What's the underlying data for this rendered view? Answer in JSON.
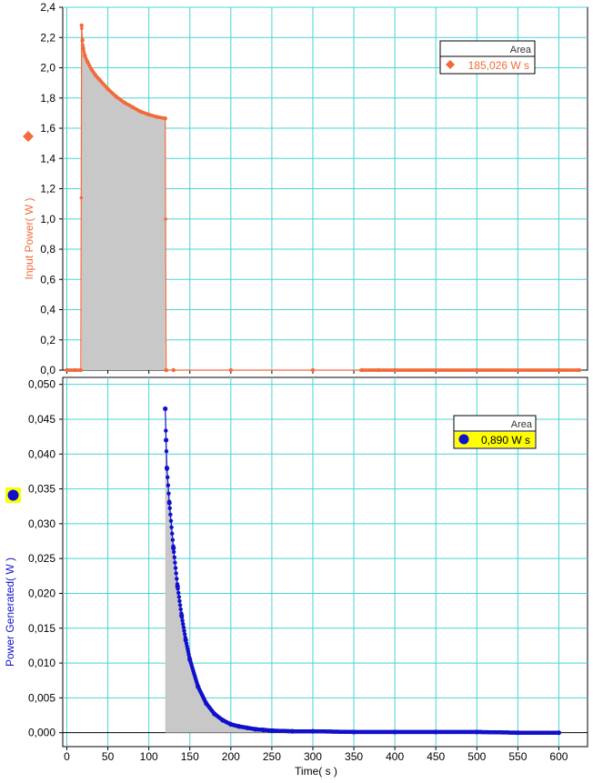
{
  "chart_data": [
    {
      "type": "area",
      "ylabel": "Input Power( W )",
      "xlabel": "",
      "xlim": [
        -5,
        635
      ],
      "ylim": [
        0,
        2.4
      ],
      "yticks": [
        "0,0",
        "0,2",
        "0,4",
        "0,6",
        "0,8",
        "1,0",
        "1,2",
        "1,4",
        "1,6",
        "1,8",
        "2,0",
        "2,2",
        "2,4"
      ],
      "grid": true,
      "color": "#f26b3a",
      "marker": "diamond",
      "shaded_range": [
        18,
        120
      ],
      "legend": {
        "title": "Area",
        "value": "185,026 W s",
        "position": "top-right"
      },
      "series": [
        {
          "x": [
            0,
            10,
            17,
            18,
            19,
            20,
            22,
            25,
            30,
            35,
            40,
            50,
            60,
            70,
            80,
            90,
            100,
            110,
            120,
            121,
            130,
            200,
            300,
            360,
            380,
            400,
            500,
            600,
            625
          ],
          "y": [
            0,
            0,
            0,
            2.28,
            2.18,
            2.13,
            2.08,
            2.04,
            1.99,
            1.95,
            1.92,
            1.86,
            1.81,
            1.77,
            1.74,
            1.71,
            1.69,
            1.675,
            1.665,
            0,
            0,
            0,
            0,
            0,
            0,
            0,
            0,
            0,
            0
          ]
        }
      ]
    },
    {
      "type": "area",
      "ylabel": "Power Generated( W )",
      "xlabel": "Time( s )",
      "xlim": [
        -5,
        635
      ],
      "ylim": [
        -0.002,
        0.051
      ],
      "xticks": [
        "0",
        "50",
        "100",
        "150",
        "200",
        "250",
        "300",
        "350",
        "400",
        "450",
        "500",
        "550",
        "600"
      ],
      "yticks": [
        "0,000",
        "0,005",
        "0,010",
        "0,015",
        "0,020",
        "0,025",
        "0,030",
        "0,035",
        "0,040",
        "0,045",
        "0,050"
      ],
      "grid": true,
      "color": "#1010cc",
      "marker": "circle",
      "shaded_range": [
        120,
        600
      ],
      "legend": {
        "title": "Area",
        "value": "0,890 W s",
        "position": "top-right",
        "highlight": "#ffff00"
      },
      "series": [
        {
          "x": [
            120,
            121,
            122,
            125,
            130,
            135,
            140,
            145,
            150,
            160,
            170,
            180,
            190,
            200,
            210,
            220,
            230,
            240,
            250,
            275,
            300,
            350,
            400,
            450,
            500,
            550,
            600
          ],
          "y": [
            0.0465,
            0.042,
            0.038,
            0.033,
            0.0265,
            0.021,
            0.0168,
            0.0133,
            0.0105,
            0.0066,
            0.0042,
            0.0027,
            0.0018,
            0.0012,
            0.0009,
            0.0007,
            0.0005,
            0.0004,
            0.0003,
            0.0002,
            0.0002,
            0.0001,
            0.0001,
            0.0001,
            0.0001,
            0.0,
            0.0
          ]
        }
      ]
    }
  ]
}
